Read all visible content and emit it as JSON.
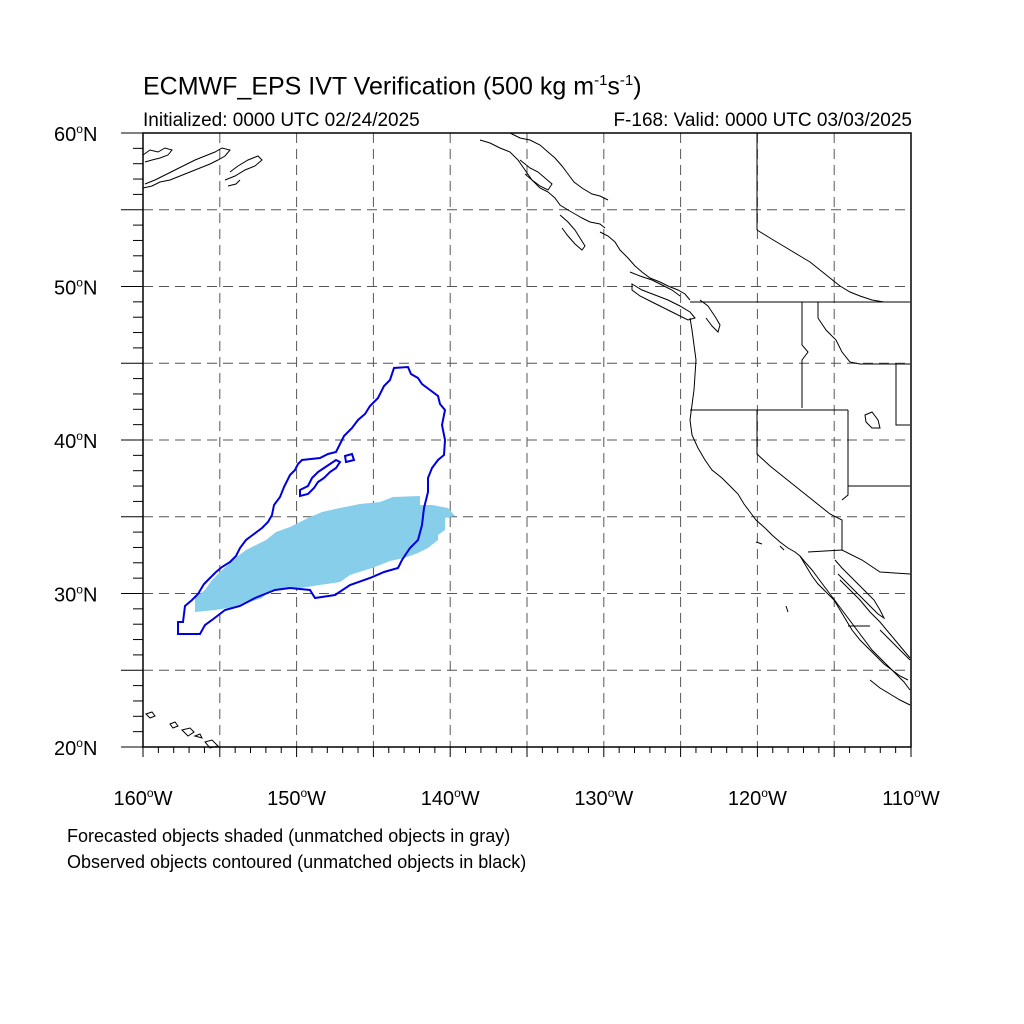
{
  "title": {
    "main": "ECMWF_EPS IVT Verification (500 kg m",
    "sup1": "-1",
    "mid": "s",
    "sup2": "-1",
    "end": ")"
  },
  "initialized": "Initialized: 0000 UTC 02/24/2025",
  "valid": "F-168: Valid: 0000 UTC 03/03/2025",
  "notes": {
    "forecast": "Forecasted objects shaded (unmatched objects in gray)",
    "observed": "Observed objects contoured (unmatched objects in black)"
  },
  "map": {
    "lon_range": [
      -160,
      -110
    ],
    "lat_range": [
      20,
      60
    ],
    "lat_ticks": [
      {
        "value": 60,
        "num": "60",
        "suffix": "N"
      },
      {
        "value": 50,
        "num": "50",
        "suffix": "N"
      },
      {
        "value": 40,
        "num": "40",
        "suffix": "N"
      },
      {
        "value": 30,
        "num": "30",
        "suffix": "N"
      },
      {
        "value": 20,
        "num": "20",
        "suffix": "N"
      }
    ],
    "lon_ticks": [
      {
        "value": -160,
        "num": "160",
        "suffix": "W"
      },
      {
        "value": -150,
        "num": "150",
        "suffix": "W"
      },
      {
        "value": -140,
        "num": "140",
        "suffix": "W"
      },
      {
        "value": -130,
        "num": "130",
        "suffix": "W"
      },
      {
        "value": -120,
        "num": "120",
        "suffix": "W"
      },
      {
        "value": -110,
        "num": "110",
        "suffix": "W"
      }
    ],
    "grid_spacing_deg": 5,
    "colors": {
      "forecast_fill": "#87ceeb",
      "observed_contour": "#0000dd",
      "coast": "#000000",
      "grid": "#555555"
    }
  }
}
